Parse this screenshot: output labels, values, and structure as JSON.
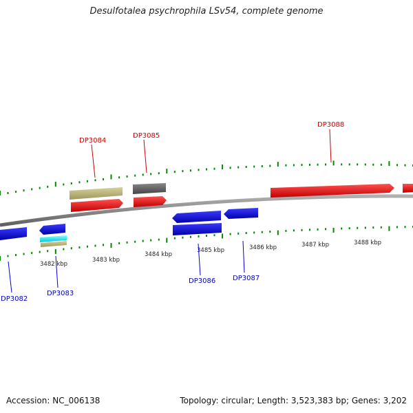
{
  "title": "Desulfotalea psychrophila LSv54, complete genome",
  "footer": {
    "accession": "Accession: NC_006138",
    "summary": "Topology: circular; Length: 3,523,383 bp; Genes: 3,202"
  },
  "colors": {
    "forward": "#ff0000",
    "reverse": "#0000ff",
    "tick": "#008800",
    "backbone": "#888888"
  },
  "axis_labels": [
    "3482 kbp",
    "3483 kbp",
    "3484 kbp",
    "3485 kbp",
    "3486 kbp",
    "3487 kbp",
    "3488 kbp"
  ],
  "gene_labels": [
    {
      "name": "DP3082",
      "strand": "reverse"
    },
    {
      "name": "DP3083",
      "strand": "reverse"
    },
    {
      "name": "DP3084",
      "strand": "forward"
    },
    {
      "name": "DP3085",
      "strand": "forward"
    },
    {
      "name": "DP3086",
      "strand": "reverse"
    },
    {
      "name": "DP3087",
      "strand": "reverse"
    },
    {
      "name": "DP3088",
      "strand": "forward"
    }
  ]
}
